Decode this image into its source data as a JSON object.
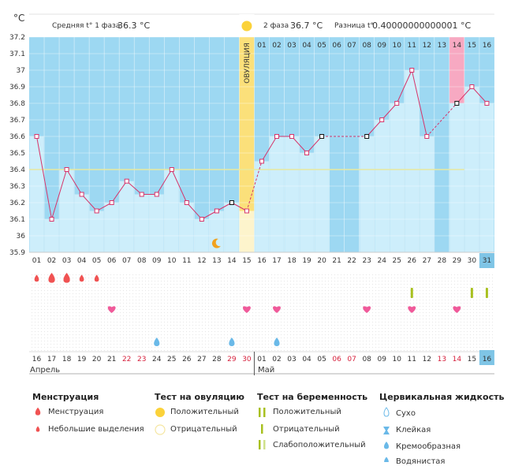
{
  "chart_data": {
    "type": "line",
    "title": "",
    "ylabel": "°C",
    "ylim": [
      35.9,
      37.2
    ],
    "yticks": [
      "35.9",
      "36",
      "36.1",
      "36.2",
      "36.3",
      "36.4",
      "36.5",
      "36.6",
      "36.7",
      "36.8",
      "36.9",
      "37",
      "37.1",
      "37.2"
    ],
    "cycle_days": [
      "01",
      "02",
      "03",
      "04",
      "05",
      "06",
      "07",
      "08",
      "09",
      "10",
      "11",
      "12",
      "13",
      "14",
      "15",
      "16",
      "17",
      "18",
      "19",
      "20",
      "21",
      "22",
      "23",
      "24",
      "25",
      "26",
      "27",
      "28",
      "29",
      "30",
      "31"
    ],
    "top_days_phase2": [
      "01",
      "02",
      "03",
      "04",
      "05",
      "06",
      "07",
      "08",
      "09",
      "10",
      "11",
      "12",
      "13",
      "14",
      "15",
      "16"
    ],
    "values": [
      36.6,
      36.1,
      36.4,
      36.25,
      36.15,
      36.2,
      36.33,
      36.25,
      36.25,
      36.4,
      36.2,
      36.1,
      36.15,
      36.2,
      36.15,
      36.45,
      36.6,
      36.6,
      36.5,
      36.6,
      null,
      null,
      36.6,
      36.7,
      36.8,
      37.0,
      36.6,
      null,
      36.8,
      36.9,
      36.8
    ],
    "dashed_segments": [
      [
        14,
        16
      ],
      [
        20,
        23
      ],
      [
        27,
        29
      ]
    ],
    "black_markers": [
      14,
      20,
      23,
      29
    ],
    "coverline": 36.4,
    "ovulation_index": 15,
    "highlight_index": 29,
    "current_index": 31,
    "calendar_dates": [
      "16",
      "17",
      "18",
      "19",
      "20",
      "21",
      "22",
      "23",
      "24",
      "25",
      "26",
      "27",
      "28",
      "29",
      "30",
      "01",
      "02",
      "03",
      "04",
      "05",
      "06",
      "07",
      "08",
      "09",
      "10",
      "11",
      "12",
      "13",
      "14",
      "15",
      "16"
    ],
    "red_date_indices": [
      6,
      7,
      13,
      14,
      20,
      21,
      27,
      28
    ],
    "month_labels": [
      "Апрель",
      "Май"
    ],
    "phase1": {
      "label": "Средняя t° 1 фаза",
      "value": "36.3 °C"
    },
    "phase2": {
      "label": "2 фаза",
      "value": "36.7 °C"
    },
    "diff": {
      "label": "Разница t°",
      "value": "0.40000000000001 °C"
    },
    "ovulation_label": "ОВУЛЯЦИЯ",
    "menstruation_marks": [
      {
        "day": 1,
        "size": "small"
      },
      {
        "day": 2,
        "size": "large"
      },
      {
        "day": 3,
        "size": "large"
      },
      {
        "day": 4,
        "size": "small"
      },
      {
        "day": 5,
        "size": "small"
      }
    ],
    "heart_days": [
      6,
      15,
      17,
      23,
      26,
      29
    ],
    "pregnancy_test_days": [
      {
        "day": 26,
        "type": "green"
      },
      {
        "day": 30,
        "type": "green"
      },
      {
        "day": 31,
        "type": "green"
      }
    ],
    "cervical_days": [
      9,
      14,
      17
    ],
    "moon_day": 13
  },
  "legend": {
    "menstruation": {
      "title": "Менструация",
      "items": [
        "Менструация",
        "Небольшие выделения"
      ]
    },
    "ovulation_test": {
      "title": "Тест на овуляцию",
      "items": [
        "Положительный",
        "Отрицательный"
      ]
    },
    "pregnancy_test": {
      "title": "Тест на беременность",
      "items": [
        "Положительный",
        "Отрицательный",
        "Слабоположительный"
      ]
    },
    "cervical": {
      "title": "Цервикальная жидкость",
      "items": [
        "Сухо",
        "Клейкая",
        "Кремообразная",
        "Водянистая"
      ]
    }
  },
  "colors": {
    "sky": "#9dd8f2",
    "bar": "#cdeefb",
    "line": "#d6346a",
    "ovulation": "#fbe07a",
    "ovulation_light": "#fdf4cc",
    "highlight": "#f7a9c2",
    "current": "#7fc5e6",
    "coverline": "#e8e9a0",
    "drop": "#f05252",
    "heart": "#f05a9a",
    "test_green": "#a8c020",
    "cervical_blue": "#6ab9e8",
    "red_date": "#d6203c"
  }
}
